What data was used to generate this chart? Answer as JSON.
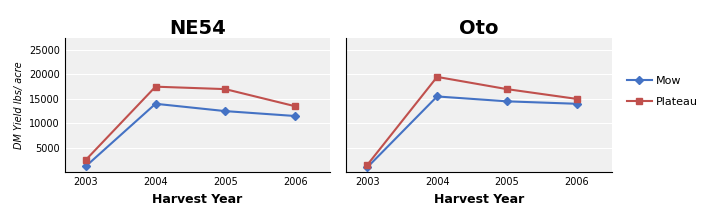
{
  "years": [
    2003,
    2004,
    2005,
    2006
  ],
  "ne54_mow": [
    1200,
    14000,
    12500,
    11500
  ],
  "ne54_plateau": [
    2500,
    17500,
    17000,
    13500
  ],
  "oto_mow": [
    1000,
    15500,
    14500,
    14000
  ],
  "oto_plateau": [
    1500,
    19500,
    17000,
    15000
  ],
  "mow_color": "#4472C4",
  "plateau_color": "#C0504D",
  "title_ne54": "NE54",
  "title_oto": "Oto",
  "ylabel": "DM Yield lbs/ acre",
  "xlabel": "Harvest Year",
  "ylim": [
    0,
    27500
  ],
  "yticks": [
    0,
    5000,
    10000,
    15000,
    20000,
    25000
  ],
  "ytick_labels": [
    "",
    "5000",
    "10000",
    "15000",
    "20000",
    "25000"
  ],
  "bg_color": "#FFFFFF",
  "plot_bg": "#F0F0F0",
  "grid_color": "#FFFFFF",
  "legend_labels": [
    "Mow",
    "Plateau"
  ],
  "title_fontsize": 14,
  "xlabel_fontsize": 9,
  "ylabel_fontsize": 7,
  "tick_fontsize": 7
}
